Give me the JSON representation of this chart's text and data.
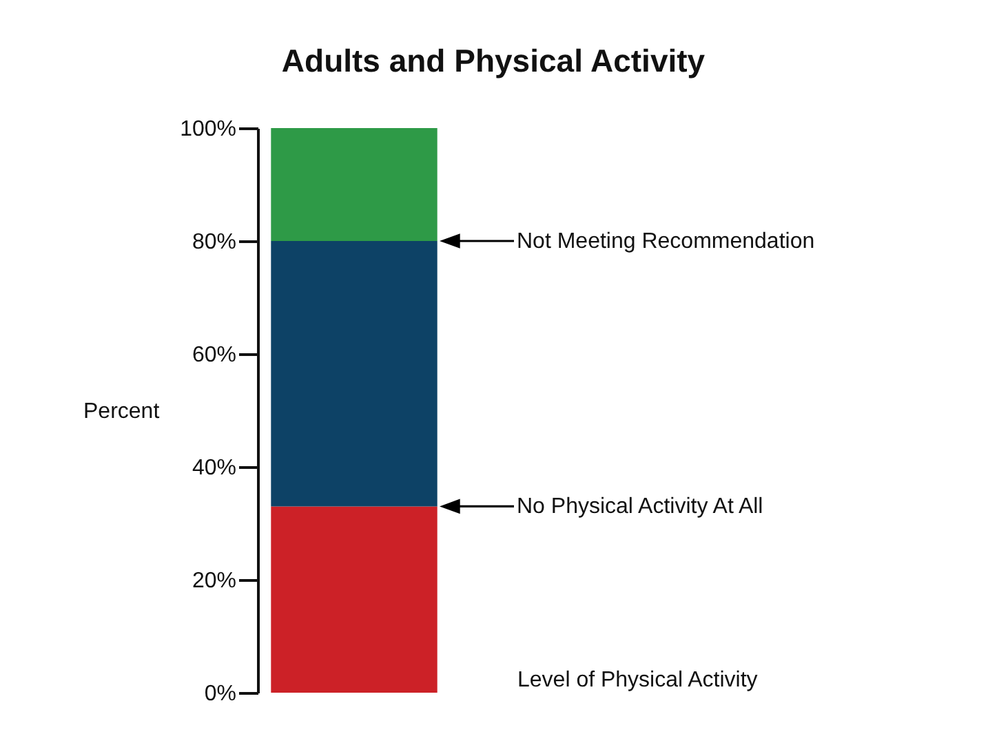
{
  "chart_data": {
    "type": "bar",
    "title": "Adults and Physical Activity",
    "ylabel": "Percent",
    "xlabel": "Level of Physical Activity",
    "categories": [
      null
    ],
    "stacked": true,
    "series": [
      {
        "color": "#cc2127",
        "values": [
          33
        ]
      },
      {
        "color": "#0d4266",
        "values": [
          47
        ]
      },
      {
        "color": "#2e9a47",
        "values": [
          20
        ]
      }
    ],
    "ylim": [
      0,
      100
    ],
    "yticks": [
      {
        "value": 0,
        "label": "0%"
      },
      {
        "value": 20,
        "label": "20%"
      },
      {
        "value": 40,
        "label": "40%"
      },
      {
        "value": 60,
        "label": "60%"
      },
      {
        "value": 80,
        "label": "80%"
      },
      {
        "value": 100,
        "label": "100%"
      }
    ],
    "annotations": [
      "Not Meeting Recommendation",
      "No Physical Activity At All"
    ],
    "grid": false,
    "legend": false
  }
}
